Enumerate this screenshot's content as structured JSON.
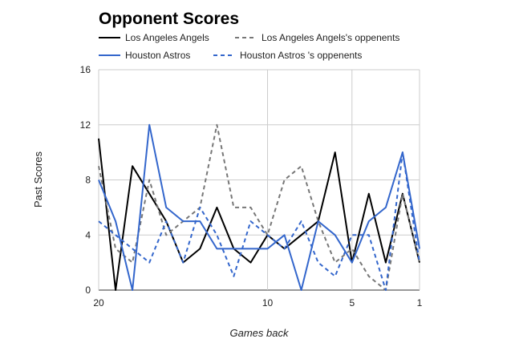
{
  "chart_data": {
    "type": "line",
    "title": "Opponent Scores",
    "xlabel": "Games back",
    "ylabel": "Past Scores",
    "x": [
      20,
      19,
      18,
      17,
      16,
      15,
      14,
      13,
      12,
      11,
      10,
      9,
      8,
      7,
      6,
      5,
      4,
      3,
      2,
      1
    ],
    "x_reversed": true,
    "xlim": [
      20,
      1
    ],
    "ylim": [
      0,
      16
    ],
    "x_ticks": [
      20,
      10,
      5,
      1
    ],
    "y_ticks": [
      0,
      4,
      8,
      12,
      16
    ],
    "grid": true,
    "legend_position": "top",
    "series": [
      {
        "name": "Los Angeles Angels",
        "color": "#000000",
        "dash": "solid",
        "values": [
          11,
          0,
          9,
          7,
          5,
          2,
          3,
          6,
          3,
          2,
          4,
          3,
          4,
          5,
          10,
          2,
          7,
          2,
          7,
          2
        ]
      },
      {
        "name": "Los Angeles Angels's oppenents",
        "color": "#777777",
        "dash": "dashed",
        "values": [
          9,
          3,
          2,
          8,
          4,
          5,
          6,
          12,
          6,
          6,
          4,
          8,
          9,
          5,
          2,
          3,
          1,
          0,
          7,
          2
        ]
      },
      {
        "name": "Houston Astros",
        "color": "#3366cc",
        "dash": "solid",
        "values": [
          8,
          5,
          0,
          12,
          6,
          5,
          5,
          3,
          3,
          3,
          3,
          4,
          0,
          5,
          4,
          2,
          5,
          6,
          10,
          3
        ]
      },
      {
        "name": "Houston Astros 's oppenents",
        "color": "#3366cc",
        "dash": "dashed",
        "values": [
          5,
          4,
          3,
          2,
          5,
          2,
          6,
          4,
          1,
          5,
          4,
          3,
          5,
          2,
          1,
          4,
          4,
          0,
          10,
          2
        ]
      }
    ]
  }
}
